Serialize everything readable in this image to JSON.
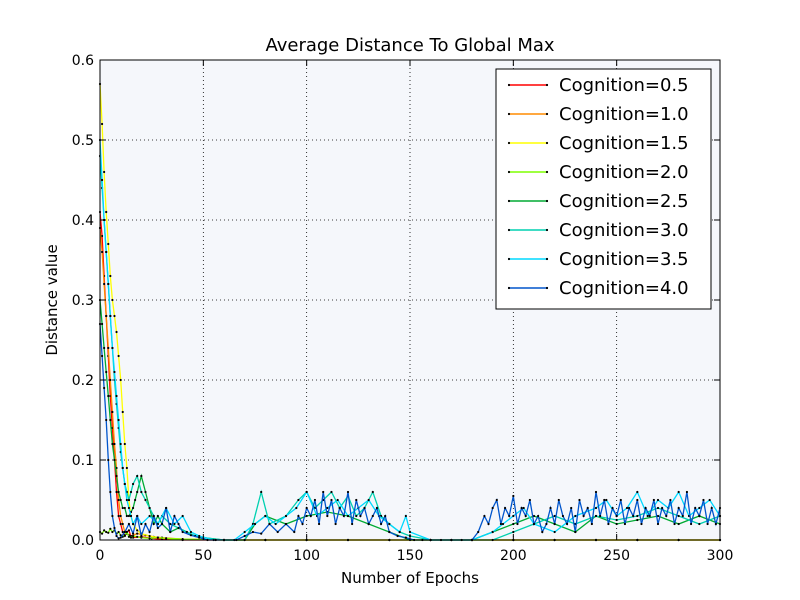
{
  "chart_data": {
    "type": "line",
    "title": "Average Distance To Global Max",
    "xlabel": "Number of Epochs",
    "ylabel": "Distance value",
    "xlim": [
      0,
      300
    ],
    "ylim": [
      0,
      0.6
    ],
    "xticks": [
      0,
      50,
      100,
      150,
      200,
      250,
      300
    ],
    "yticks": [
      0.0,
      0.1,
      0.2,
      0.3,
      0.4,
      0.5,
      0.6
    ],
    "xtick_labels": [
      "0",
      "50",
      "100",
      "150",
      "200",
      "250",
      "300"
    ],
    "ytick_labels": [
      "0.0",
      "0.1",
      "0.2",
      "0.3",
      "0.4",
      "0.5",
      "0.6"
    ],
    "grid": true,
    "legend_position": "top-right",
    "series": [
      {
        "name": "Cognition=0.5",
        "color": "#ff0000",
        "x": [
          0,
          1,
          2,
          3,
          4,
          5,
          6,
          7,
          8,
          9,
          10,
          11,
          12,
          13,
          14,
          15,
          16,
          20,
          25,
          30,
          40,
          60,
          80,
          100,
          120,
          140,
          160,
          180,
          200,
          220,
          240,
          260,
          280,
          300
        ],
        "y": [
          0.41,
          0.38,
          0.33,
          0.28,
          0.23,
          0.18,
          0.14,
          0.1,
          0.06,
          0.03,
          0.02,
          0.01,
          0.005,
          0.01,
          0.012,
          0.004,
          0.003,
          0.004,
          0.002,
          0.001,
          0.0,
          0.0,
          0.0,
          0.0,
          0.0,
          0.0,
          0.0,
          0.0,
          0.0,
          0.0,
          0.0,
          0.0,
          0.0,
          0.0
        ]
      },
      {
        "name": "Cognition=1.0",
        "color": "#ff8c00",
        "x": [
          0,
          1,
          2,
          3,
          4,
          5,
          6,
          7,
          8,
          9,
          10,
          11,
          12,
          13,
          14,
          15,
          18,
          22,
          26,
          30,
          40,
          60,
          80,
          100,
          120,
          140,
          160,
          180,
          200,
          220,
          240,
          260,
          280,
          300
        ],
        "y": [
          0.39,
          0.36,
          0.32,
          0.28,
          0.24,
          0.2,
          0.16,
          0.12,
          0.09,
          0.05,
          0.03,
          0.02,
          0.01,
          0.008,
          0.006,
          0.005,
          0.008,
          0.006,
          0.004,
          0.003,
          0.001,
          0.0,
          0.0,
          0.0,
          0.0,
          0.0,
          0.0,
          0.0,
          0.0,
          0.0,
          0.0,
          0.0,
          0.0,
          0.0
        ]
      },
      {
        "name": "Cognition=1.5",
        "color": "#ffff00",
        "x": [
          0,
          1,
          2,
          3,
          4,
          5,
          6,
          7,
          8,
          9,
          10,
          11,
          12,
          13,
          14,
          15,
          16,
          18,
          20,
          24,
          28,
          32,
          40,
          60,
          80,
          100,
          120,
          140,
          160,
          180,
          200,
          220,
          240,
          260,
          280,
          300
        ],
        "y": [
          0.57,
          0.52,
          0.46,
          0.41,
          0.37,
          0.33,
          0.3,
          0.28,
          0.26,
          0.23,
          0.2,
          0.16,
          0.12,
          0.09,
          0.05,
          0.03,
          0.02,
          0.012,
          0.008,
          0.005,
          0.003,
          0.002,
          0.001,
          0.0,
          0.0,
          0.0,
          0.0,
          0.0,
          0.0,
          0.0,
          0.0,
          0.0,
          0.0,
          0.0,
          0.0,
          0.0
        ]
      },
      {
        "name": "Cognition=2.0",
        "color": "#7fff00",
        "x": [
          0,
          1,
          2,
          3,
          4,
          5,
          6,
          7,
          8,
          9,
          10,
          11,
          12,
          13,
          14,
          15,
          16,
          18,
          20,
          24,
          28,
          32,
          40,
          60,
          80,
          100,
          120,
          140,
          160,
          180,
          200,
          220,
          240,
          260,
          280,
          300
        ],
        "y": [
          0.01,
          0.008,
          0.012,
          0.01,
          0.009,
          0.014,
          0.01,
          0.012,
          0.008,
          0.01,
          0.006,
          0.004,
          0.006,
          0.01,
          0.004,
          0.003,
          0.005,
          0.004,
          0.003,
          0.002,
          0.003,
          0.002,
          0.001,
          0.0,
          0.0,
          0.0,
          0.0,
          0.0,
          0.0,
          0.0,
          0.0,
          0.0,
          0.0,
          0.0,
          0.0,
          0.0
        ]
      },
      {
        "name": "Cognition=2.5",
        "color": "#00aa33",
        "x": [
          0,
          1,
          2,
          3,
          4,
          5,
          6,
          7,
          8,
          9,
          10,
          11,
          12,
          13,
          14,
          15,
          16,
          17,
          18,
          20,
          22,
          24,
          26,
          28,
          30,
          34,
          38,
          42,
          46,
          50,
          60,
          70,
          75,
          80,
          90,
          100,
          110,
          120,
          130,
          140,
          150,
          160,
          170,
          180,
          190,
          200,
          210,
          220,
          230,
          240,
          250,
          260,
          270,
          280,
          290,
          300
        ],
        "y": [
          0.3,
          0.27,
          0.24,
          0.21,
          0.18,
          0.15,
          0.12,
          0.1,
          0.08,
          0.06,
          0.05,
          0.04,
          0.04,
          0.03,
          0.03,
          0.035,
          0.04,
          0.05,
          0.06,
          0.08,
          0.06,
          0.04,
          0.02,
          0.03,
          0.02,
          0.01,
          0.015,
          0.01,
          0.005,
          0.003,
          0.0,
          0.0,
          0.02,
          0.03,
          0.02,
          0.03,
          0.035,
          0.03,
          0.02,
          0.01,
          0.0,
          0.0,
          0.0,
          0.0,
          0.01,
          0.02,
          0.03,
          0.02,
          0.01,
          0.03,
          0.02,
          0.025,
          0.03,
          0.02,
          0.03,
          0.02
        ]
      },
      {
        "name": "Cognition=3.0",
        "color": "#00d0b0",
        "x": [
          0,
          1,
          2,
          3,
          4,
          5,
          6,
          7,
          8,
          9,
          10,
          11,
          12,
          13,
          14,
          15,
          16,
          18,
          20,
          22,
          24,
          26,
          28,
          30,
          34,
          38,
          42,
          46,
          50,
          60,
          70,
          74,
          78,
          82,
          90,
          96,
          100,
          104,
          108,
          112,
          116,
          120,
          124,
          128,
          132,
          136,
          140,
          145,
          150,
          160,
          170,
          180,
          190,
          200,
          210,
          220,
          230,
          240,
          250,
          260,
          270,
          280,
          290,
          300
        ],
        "y": [
          0.48,
          0.44,
          0.4,
          0.36,
          0.32,
          0.28,
          0.24,
          0.2,
          0.17,
          0.14,
          0.11,
          0.09,
          0.07,
          0.06,
          0.05,
          0.06,
          0.07,
          0.08,
          0.06,
          0.05,
          0.04,
          0.03,
          0.02,
          0.03,
          0.02,
          0.015,
          0.01,
          0.005,
          0.003,
          0.0,
          0.0,
          0.02,
          0.06,
          0.02,
          0.03,
          0.05,
          0.06,
          0.04,
          0.05,
          0.06,
          0.04,
          0.055,
          0.03,
          0.04,
          0.06,
          0.03,
          0.02,
          0.01,
          0.005,
          0.0,
          0.0,
          0.0,
          0.0,
          0.01,
          0.02,
          0.03,
          0.02,
          0.03,
          0.025,
          0.03,
          0.04,
          0.03,
          0.02,
          0.03
        ]
      },
      {
        "name": "Cognition=3.5",
        "color": "#00d8ff",
        "x": [
          0,
          1,
          2,
          3,
          4,
          5,
          6,
          7,
          8,
          9,
          10,
          11,
          12,
          13,
          14,
          15,
          16,
          18,
          20,
          24,
          28,
          32,
          36,
          40,
          44,
          48,
          55,
          65,
          70,
          75,
          80,
          85,
          90,
          95,
          100,
          105,
          110,
          115,
          120,
          125,
          130,
          135,
          140,
          145,
          148,
          150,
          160,
          170,
          180,
          190,
          195,
          200,
          205,
          210,
          220,
          230,
          240,
          245,
          250,
          255,
          260,
          265,
          270,
          275,
          280,
          285,
          290,
          295,
          300
        ],
        "y": [
          0.5,
          0.45,
          0.4,
          0.36,
          0.32,
          0.28,
          0.24,
          0.21,
          0.18,
          0.15,
          0.12,
          0.09,
          0.07,
          0.05,
          0.04,
          0.03,
          0.02,
          0.03,
          0.02,
          0.03,
          0.02,
          0.04,
          0.02,
          0.03,
          0.01,
          0.005,
          0.0,
          0.0,
          0.01,
          0.02,
          0.03,
          0.02,
          0.03,
          0.04,
          0.06,
          0.03,
          0.04,
          0.05,
          0.03,
          0.04,
          0.05,
          0.03,
          0.02,
          0.01,
          0.03,
          0.01,
          0.0,
          0.0,
          0.0,
          0.01,
          0.02,
          0.03,
          0.04,
          0.02,
          0.01,
          0.03,
          0.04,
          0.05,
          0.03,
          0.04,
          0.06,
          0.03,
          0.05,
          0.04,
          0.06,
          0.03,
          0.04,
          0.05,
          0.03
        ]
      },
      {
        "name": "Cognition=4.0",
        "color": "#0055cc",
        "x": [
          0,
          1,
          2,
          3,
          4,
          5,
          6,
          7,
          8,
          9,
          10,
          12,
          14,
          16,
          18,
          20,
          22,
          24,
          26,
          28,
          30,
          32,
          34,
          36,
          38,
          40,
          44,
          48,
          52,
          56,
          60,
          66,
          70,
          74,
          78,
          82,
          86,
          90,
          94,
          96,
          98,
          100,
          102,
          104,
          106,
          108,
          110,
          112,
          114,
          116,
          118,
          120,
          122,
          124,
          126,
          128,
          130,
          132,
          134,
          136,
          138,
          140,
          144,
          148,
          152,
          156,
          160,
          165,
          170,
          175,
          180,
          183,
          186,
          188,
          190,
          192,
          194,
          196,
          198,
          200,
          202,
          204,
          206,
          208,
          210,
          212,
          214,
          216,
          218,
          220,
          222,
          224,
          226,
          228,
          230,
          232,
          234,
          236,
          238,
          240,
          242,
          244,
          246,
          248,
          250,
          252,
          254,
          256,
          258,
          260,
          262,
          264,
          266,
          268,
          270,
          272,
          274,
          276,
          278,
          280,
          282,
          284,
          286,
          288,
          290,
          292,
          294,
          296,
          298,
          300
        ],
        "y": [
          0.27,
          0.23,
          0.19,
          0.15,
          0.1,
          0.06,
          0.03,
          0.015,
          0.005,
          0.002,
          0.003,
          0.01,
          0.02,
          0.008,
          0.03,
          0.005,
          0.02,
          0.01,
          0.03,
          0.015,
          0.02,
          0.04,
          0.01,
          0.03,
          0.02,
          0.01,
          0.006,
          0.003,
          0.0,
          0.0,
          0.0,
          0.0,
          0.005,
          0.01,
          0.008,
          0.02,
          0.01,
          0.02,
          0.01,
          0.03,
          0.02,
          0.04,
          0.03,
          0.05,
          0.02,
          0.06,
          0.03,
          0.05,
          0.02,
          0.04,
          0.03,
          0.06,
          0.02,
          0.05,
          0.03,
          0.04,
          0.02,
          0.03,
          0.04,
          0.02,
          0.03,
          0.01,
          0.005,
          0.003,
          0.0,
          0.0,
          0.0,
          0.0,
          0.0,
          0.0,
          0.0,
          0.01,
          0.03,
          0.02,
          0.04,
          0.05,
          0.02,
          0.04,
          0.03,
          0.055,
          0.02,
          0.04,
          0.03,
          0.05,
          0.02,
          0.03,
          0.01,
          0.02,
          0.04,
          0.02,
          0.05,
          0.03,
          0.02,
          0.04,
          0.01,
          0.05,
          0.03,
          0.04,
          0.02,
          0.06,
          0.03,
          0.05,
          0.02,
          0.04,
          0.03,
          0.05,
          0.02,
          0.04,
          0.03,
          0.05,
          0.02,
          0.04,
          0.03,
          0.05,
          0.02,
          0.04,
          0.03,
          0.05,
          0.02,
          0.04,
          0.03,
          0.06,
          0.02,
          0.04,
          0.03,
          0.05,
          0.02,
          0.04,
          0.02,
          0.04
        ]
      }
    ]
  }
}
